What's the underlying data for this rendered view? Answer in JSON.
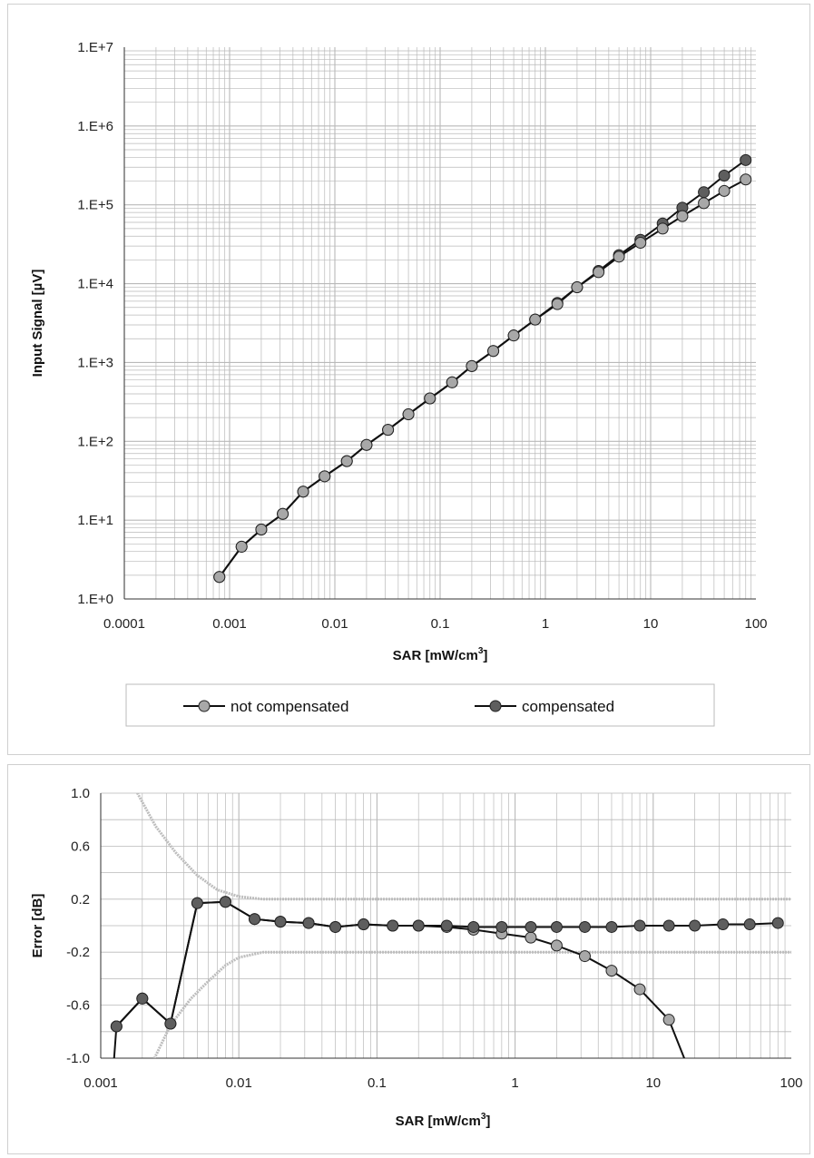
{
  "colors": {
    "not_compensated": "#a8a8a8",
    "compensated": "#5e5e5e",
    "line": "#111111",
    "grid": "#b9b9b9",
    "limit": "#bdbdbd"
  },
  "chart_data": [
    {
      "type": "line",
      "title": "",
      "xlabel": "SAR [mW/cm³]",
      "ylabel": "Input Signal  [µV]",
      "xscale": "log",
      "yscale": "log",
      "xlim": [
        0.0001,
        100
      ],
      "ylim": [
        1,
        10000000
      ],
      "grid": true,
      "legend": "bottom",
      "x_ticks": [
        "0.0001",
        "0.001",
        "0.01",
        "0.1",
        "1",
        "10",
        "100"
      ],
      "y_ticks": [
        "1.E+0",
        "1.E+1",
        "1.E+2",
        "1.E+3",
        "1.E+4",
        "1.E+5",
        "1.E+6",
        "1.E+7"
      ],
      "x": [
        0.0008,
        0.0013,
        0.002,
        0.0032,
        0.005,
        0.008,
        0.013,
        0.02,
        0.032,
        0.05,
        0.08,
        0.13,
        0.2,
        0.32,
        0.5,
        0.8,
        1.3,
        2,
        3.2,
        5,
        8,
        13,
        20,
        32,
        50,
        80
      ],
      "series": [
        {
          "name": "not compensated",
          "values": [
            1.9,
            4.6,
            7.6,
            12,
            23,
            36,
            56,
            90,
            140,
            220,
            350,
            560,
            900,
            1400,
            2200,
            3500,
            5500,
            9000,
            14000,
            22000,
            33000,
            50000,
            72000,
            105000,
            150000,
            210000
          ]
        },
        {
          "name": "compensated",
          "values": [
            1.9,
            4.6,
            7.6,
            12,
            23,
            36,
            56,
            90,
            140,
            220,
            350,
            560,
            900,
            1400,
            2200,
            3500,
            5700,
            9000,
            14500,
            23000,
            36000,
            58000,
            92000,
            145000,
            235000,
            370000
          ]
        }
      ]
    },
    {
      "type": "line",
      "title": "",
      "xlabel": "SAR [mW/cm³]",
      "ylabel": "Error [dB]",
      "xscale": "log",
      "xlim": [
        0.001,
        100
      ],
      "ylim": [
        -1.0,
        1.0
      ],
      "grid": true,
      "x_ticks": [
        "0.001",
        "0.01",
        "0.1",
        "1",
        "10",
        "100"
      ],
      "y_ticks": [
        "1.0",
        "0.6",
        "0.2",
        "-0.2",
        "-0.6",
        "-1.0"
      ],
      "x": [
        0.0013,
        0.002,
        0.0032,
        0.005,
        0.008,
        0.013,
        0.02,
        0.032,
        0.05,
        0.08,
        0.13,
        0.2,
        0.32,
        0.5,
        0.8,
        1.3,
        2,
        3.2,
        5,
        8,
        13,
        20,
        32,
        50,
        80
      ],
      "series": [
        {
          "name": "not compensated",
          "values": [
            -0.76,
            -0.55,
            -0.74,
            0.17,
            0.18,
            0.05,
            0.03,
            0.02,
            -0.01,
            0.01,
            0.0,
            0.0,
            -0.01,
            -0.03,
            -0.06,
            -0.09,
            -0.15,
            -0.23,
            -0.34,
            -0.48,
            -0.71,
            -1.2,
            null,
            null,
            null
          ]
        },
        {
          "name": "compensated",
          "values": [
            -0.76,
            -0.55,
            -0.74,
            0.17,
            0.18,
            0.05,
            0.03,
            0.02,
            -0.01,
            0.01,
            0.0,
            0.0,
            0.0,
            -0.01,
            -0.01,
            -0.01,
            -0.01,
            -0.01,
            -0.01,
            0.0,
            0.0,
            0.0,
            0.01,
            0.01,
            0.02
          ]
        }
      ],
      "limit_lines": {
        "upper": {
          "x": [
            0.0018,
            0.0025,
            0.0035,
            0.005,
            0.007,
            0.01,
            0.015,
            100
          ],
          "y": [
            1.02,
            0.75,
            0.55,
            0.38,
            0.27,
            0.22,
            0.2,
            0.2
          ]
        },
        "lower": {
          "x": [
            0.0024,
            0.0032,
            0.0045,
            0.006,
            0.008,
            0.01,
            0.015,
            100
          ],
          "y": [
            -1.02,
            -0.75,
            -0.55,
            -0.42,
            -0.3,
            -0.24,
            -0.2,
            -0.2
          ]
        }
      }
    }
  ]
}
